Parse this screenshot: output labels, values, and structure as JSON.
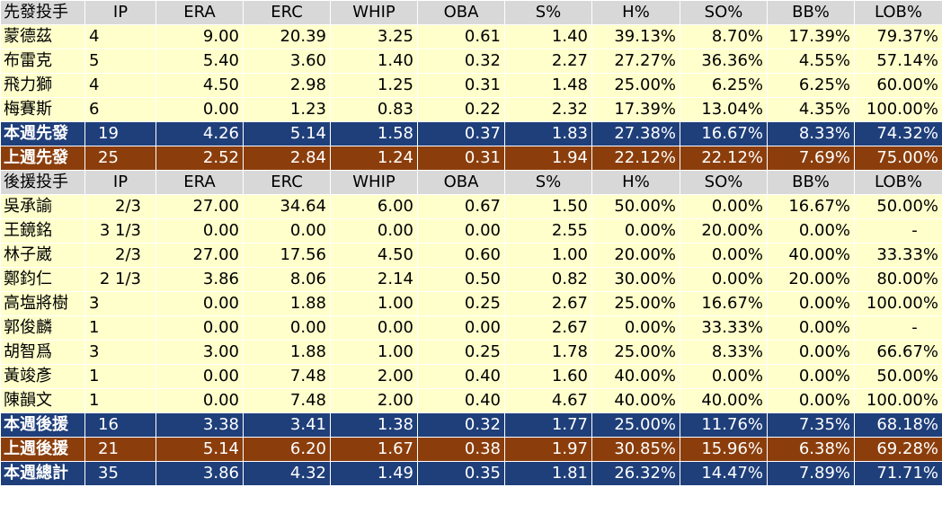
{
  "columns": [
    "IP",
    "ERA",
    "ERC",
    "WHIP",
    "OBA",
    "S%",
    "H%",
    "SO%",
    "BB%",
    "LOB%"
  ],
  "starters": {
    "header": "先發投手",
    "rows": [
      {
        "name": "蒙德茲",
        "ip": "4",
        "era": "9.00",
        "erc": "20.39",
        "whip": "3.25",
        "oba": "0.61",
        "s": "1.40",
        "h": "39.13%",
        "so": "8.70%",
        "bb": "17.39%",
        "lob": "79.37%"
      },
      {
        "name": "布雷克",
        "ip": "5",
        "era": "5.40",
        "erc": "3.60",
        "whip": "1.40",
        "oba": "0.32",
        "s": "2.27",
        "h": "27.27%",
        "so": "36.36%",
        "bb": "4.55%",
        "lob": "57.14%"
      },
      {
        "name": "飛力獅",
        "ip": "4",
        "era": "4.50",
        "erc": "2.98",
        "whip": "1.25",
        "oba": "0.31",
        "s": "1.48",
        "h": "25.00%",
        "so": "6.25%",
        "bb": "6.25%",
        "lob": "60.00%"
      },
      {
        "name": "梅賽斯",
        "ip": "6",
        "era": "0.00",
        "erc": "1.23",
        "whip": "0.83",
        "oba": "0.22",
        "s": "2.32",
        "h": "17.39%",
        "so": "13.04%",
        "bb": "4.35%",
        "lob": "100.00%"
      }
    ],
    "this_week": {
      "name": "本週先發",
      "ip": "19",
      "era": "4.26",
      "erc": "5.14",
      "whip": "1.58",
      "oba": "0.37",
      "s": "1.83",
      "h": "27.38%",
      "so": "16.67%",
      "bb": "8.33%",
      "lob": "74.32%"
    },
    "last_week": {
      "name": "上週先發",
      "ip": "25",
      "era": "2.52",
      "erc": "2.84",
      "whip": "1.24",
      "oba": "0.31",
      "s": "1.94",
      "h": "22.12%",
      "so": "22.12%",
      "bb": "7.69%",
      "lob": "75.00%"
    }
  },
  "relievers": {
    "header": "後援投手",
    "rows": [
      {
        "name": "吳承諭",
        "ip": "2/3",
        "era": "27.00",
        "erc": "34.64",
        "whip": "6.00",
        "oba": "0.67",
        "s": "1.50",
        "h": "50.00%",
        "so": "0.00%",
        "bb": "16.67%",
        "lob": "50.00%"
      },
      {
        "name": "王鏡銘",
        "ip": "3 1/3",
        "era": "0.00",
        "erc": "0.00",
        "whip": "0.00",
        "oba": "0.00",
        "s": "2.55",
        "h": "0.00%",
        "so": "20.00%",
        "bb": "0.00%",
        "lob": "-"
      },
      {
        "name": "林子崴",
        "ip": "2/3",
        "era": "27.00",
        "erc": "17.56",
        "whip": "4.50",
        "oba": "0.60",
        "s": "1.00",
        "h": "20.00%",
        "so": "0.00%",
        "bb": "40.00%",
        "lob": "33.33%"
      },
      {
        "name": "鄭鈞仁",
        "ip": "2 1/3",
        "era": "3.86",
        "erc": "8.06",
        "whip": "2.14",
        "oba": "0.50",
        "s": "0.82",
        "h": "30.00%",
        "so": "0.00%",
        "bb": "20.00%",
        "lob": "80.00%"
      },
      {
        "name": "高塩將樹",
        "ip": "3",
        "era": "0.00",
        "erc": "1.88",
        "whip": "1.00",
        "oba": "0.25",
        "s": "2.67",
        "h": "25.00%",
        "so": "16.67%",
        "bb": "0.00%",
        "lob": "100.00%"
      },
      {
        "name": "郭俊麟",
        "ip": "1",
        "era": "0.00",
        "erc": "0.00",
        "whip": "0.00",
        "oba": "0.00",
        "s": "2.67",
        "h": "0.00%",
        "so": "33.33%",
        "bb": "0.00%",
        "lob": "-"
      },
      {
        "name": "胡智爲",
        "ip": "3",
        "era": "3.00",
        "erc": "1.88",
        "whip": "1.00",
        "oba": "0.25",
        "s": "1.78",
        "h": "25.00%",
        "so": "8.33%",
        "bb": "0.00%",
        "lob": "66.67%"
      },
      {
        "name": "黃竣彥",
        "ip": "1",
        "era": "0.00",
        "erc": "7.48",
        "whip": "2.00",
        "oba": "0.40",
        "s": "1.60",
        "h": "40.00%",
        "so": "0.00%",
        "bb": "0.00%",
        "lob": "50.00%"
      },
      {
        "name": "陳韻文",
        "ip": "1",
        "era": "0.00",
        "erc": "7.48",
        "whip": "2.00",
        "oba": "0.40",
        "s": "4.67",
        "h": "40.00%",
        "so": "40.00%",
        "bb": "0.00%",
        "lob": "100.00%"
      }
    ],
    "this_week": {
      "name": "本週後援",
      "ip": "16",
      "era": "3.38",
      "erc": "3.41",
      "whip": "1.38",
      "oba": "0.32",
      "s": "1.77",
      "h": "25.00%",
      "so": "11.76%",
      "bb": "7.35%",
      "lob": "68.18%"
    },
    "last_week": {
      "name": "上週後援",
      "ip": "21",
      "era": "5.14",
      "erc": "6.20",
      "whip": "1.67",
      "oba": "0.38",
      "s": "1.97",
      "h": "30.85%",
      "so": "15.96%",
      "bb": "6.38%",
      "lob": "69.28%"
    }
  },
  "total": {
    "name": "本週總計",
    "ip": "35",
    "era": "3.86",
    "erc": "4.32",
    "whip": "1.49",
    "oba": "0.35",
    "s": "1.81",
    "h": "26.32%",
    "so": "14.47%",
    "bb": "7.89%",
    "lob": "71.71%"
  },
  "colors": {
    "header_bg": "#d8d8d8",
    "row_bg": "#ffffcc",
    "this_week_bg": "#1f3f7a",
    "last_week_bg": "#8b3e0c",
    "summary_text": "#ffffff"
  }
}
